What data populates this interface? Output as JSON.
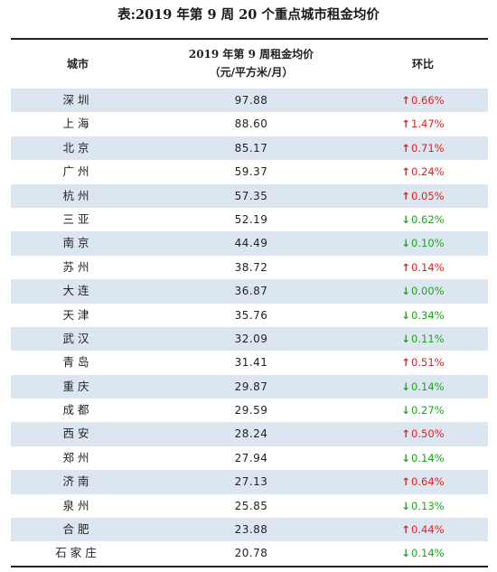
{
  "caption": "表:2019 年第 9 周 20 个重点城市租金均价",
  "header": {
    "city": "城市",
    "price_line1": "2019 年第 9 周租金均价",
    "price_line2": "（元/平方米/月）",
    "change": "环比"
  },
  "colors": {
    "up": "#e02020",
    "down": "#1aa81a",
    "stripe": "#dce6f1"
  },
  "icons": {
    "up": "arrow-up-icon",
    "down": "arrow-down-icon"
  },
  "rows": [
    {
      "city": "深圳",
      "price": "97.88",
      "dir": "up",
      "change": "0.66%"
    },
    {
      "city": "上海",
      "price": "88.60",
      "dir": "up",
      "change": "1.47%"
    },
    {
      "city": "北京",
      "price": "85.17",
      "dir": "up",
      "change": "0.71%"
    },
    {
      "city": "广州",
      "price": "59.37",
      "dir": "up",
      "change": "0.24%"
    },
    {
      "city": "杭州",
      "price": "57.35",
      "dir": "up",
      "change": "0.05%"
    },
    {
      "city": "三亚",
      "price": "52.19",
      "dir": "down",
      "change": "0.62%"
    },
    {
      "city": "南京",
      "price": "44.49",
      "dir": "down",
      "change": "0.10%"
    },
    {
      "city": "苏州",
      "price": "38.72",
      "dir": "up",
      "change": "0.14%"
    },
    {
      "city": "大连",
      "price": "36.87",
      "dir": "down",
      "change": "0.00%"
    },
    {
      "city": "天津",
      "price": "35.76",
      "dir": "down",
      "change": "0.34%"
    },
    {
      "city": "武汉",
      "price": "32.09",
      "dir": "down",
      "change": "0.11%"
    },
    {
      "city": "青岛",
      "price": "31.41",
      "dir": "up",
      "change": "0.51%"
    },
    {
      "city": "重庆",
      "price": "29.87",
      "dir": "down",
      "change": "0.14%"
    },
    {
      "city": "成都",
      "price": "29.59",
      "dir": "down",
      "change": "0.27%"
    },
    {
      "city": "西安",
      "price": "28.24",
      "dir": "up",
      "change": "0.50%"
    },
    {
      "city": "郑州",
      "price": "27.94",
      "dir": "down",
      "change": "0.14%"
    },
    {
      "city": "济南",
      "price": "27.13",
      "dir": "up",
      "change": "0.64%"
    },
    {
      "city": "泉州",
      "price": "25.85",
      "dir": "down",
      "change": "0.13%"
    },
    {
      "city": "合肥",
      "price": "23.88",
      "dir": "up",
      "change": "0.44%"
    },
    {
      "city": "石家庄",
      "price": "20.78",
      "dir": "down",
      "change": "0.14%"
    }
  ]
}
